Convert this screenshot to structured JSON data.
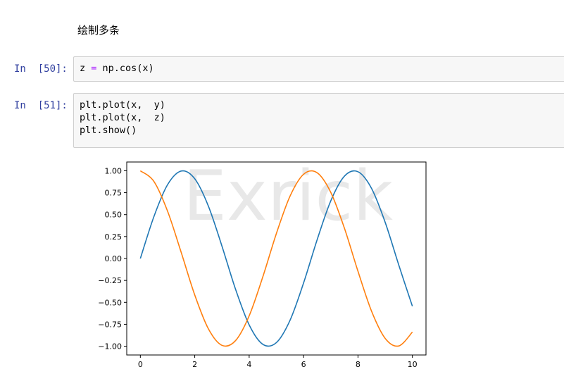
{
  "markdown": {
    "heading": "绘制多条"
  },
  "cells": [
    {
      "prompt": "In  [50]:",
      "lines": [
        [
          "z ",
          {
            "op": "="
          },
          " np.cos(x)"
        ]
      ]
    },
    {
      "prompt": "In  [51]:",
      "lines": [
        [
          "plt.plot(x,  y)"
        ],
        [
          "plt.plot(x,  z)"
        ],
        [
          "plt.show()"
        ]
      ]
    }
  ],
  "watermark": "Exrick",
  "chart_data": {
    "type": "line",
    "title": "",
    "xlabel": "",
    "ylabel": "",
    "xlim": [
      -0.5,
      10.5
    ],
    "ylim": [
      -1.1,
      1.1
    ],
    "xticks": [
      0,
      2,
      4,
      6,
      8,
      10
    ],
    "yticks": [
      1.0,
      0.75,
      0.5,
      0.25,
      0.0,
      -0.25,
      -0.5,
      -0.75,
      -1.0
    ],
    "ytick_labels": [
      "1.00",
      "0.75",
      "0.50",
      "0.25",
      "0.00",
      "−0.25",
      "−0.50",
      "−0.75",
      "−1.00"
    ],
    "grid": false,
    "x": [
      0,
      0.5,
      1,
      1.5,
      2,
      2.5,
      3,
      3.5,
      4,
      4.5,
      5,
      5.5,
      6,
      6.5,
      7,
      7.5,
      8,
      8.5,
      9,
      9.5,
      10
    ],
    "series": [
      {
        "color": "#1f77b4",
        "values": [
          0.0,
          0.479,
          0.841,
          0.997,
          0.909,
          0.598,
          0.141,
          -0.351,
          -0.757,
          -0.978,
          -0.959,
          -0.706,
          -0.279,
          0.215,
          0.657,
          0.938,
          0.989,
          0.798,
          0.412,
          -0.075,
          -0.544
        ]
      },
      {
        "color": "#ff7f0e",
        "values": [
          1.0,
          0.878,
          0.54,
          0.071,
          -0.416,
          -0.801,
          -0.99,
          -0.936,
          -0.654,
          -0.211,
          0.284,
          0.709,
          0.96,
          0.977,
          0.754,
          0.347,
          -0.146,
          -0.602,
          -0.911,
          -0.997,
          -0.839
        ]
      }
    ]
  }
}
